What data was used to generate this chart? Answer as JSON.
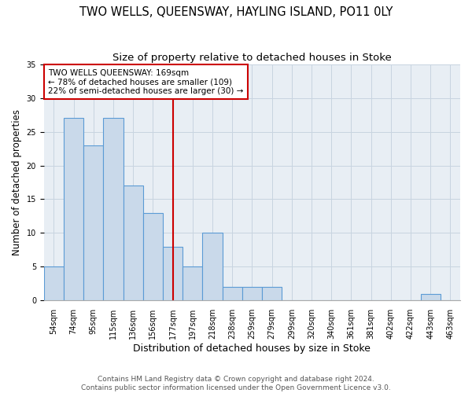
{
  "title": "TWO WELLS, QUEENSWAY, HAYLING ISLAND, PO11 0LY",
  "subtitle": "Size of property relative to detached houses in Stoke",
  "xlabel": "Distribution of detached houses by size in Stoke",
  "ylabel": "Number of detached properties",
  "bar_labels": [
    "54sqm",
    "74sqm",
    "95sqm",
    "115sqm",
    "136sqm",
    "156sqm",
    "177sqm",
    "197sqm",
    "218sqm",
    "238sqm",
    "259sqm",
    "279sqm",
    "299sqm",
    "320sqm",
    "340sqm",
    "361sqm",
    "381sqm",
    "402sqm",
    "422sqm",
    "443sqm",
    "463sqm"
  ],
  "bar_values": [
    5,
    27,
    23,
    27,
    17,
    13,
    8,
    5,
    10,
    2,
    2,
    2,
    0,
    0,
    0,
    0,
    0,
    0,
    0,
    1,
    0
  ],
  "bar_color": "#c9d9ea",
  "bar_edge_color": "#5b9bd5",
  "bar_edge_width": 0.8,
  "vline_x": 6.0,
  "vline_color": "#cc0000",
  "annotation_line1": "TWO WELLS QUEENSWAY: 169sqm",
  "annotation_line2": "← 78% of detached houses are smaller (109)",
  "annotation_line3": "22% of semi-detached houses are larger (30) →",
  "annotation_box_color": "white",
  "annotation_box_edge": "#cc0000",
  "ylim": [
    0,
    35
  ],
  "yticks": [
    0,
    5,
    10,
    15,
    20,
    25,
    30,
    35
  ],
  "grid_color": "#c8d4e0",
  "bg_color": "#e8eef4",
  "footer": "Contains HM Land Registry data © Crown copyright and database right 2024.\nContains public sector information licensed under the Open Government Licence v3.0.",
  "title_fontsize": 10.5,
  "subtitle_fontsize": 9.5,
  "ylabel_fontsize": 8.5,
  "xlabel_fontsize": 9,
  "tick_fontsize": 7,
  "annotation_fontsize": 7.5,
  "footer_fontsize": 6.5
}
